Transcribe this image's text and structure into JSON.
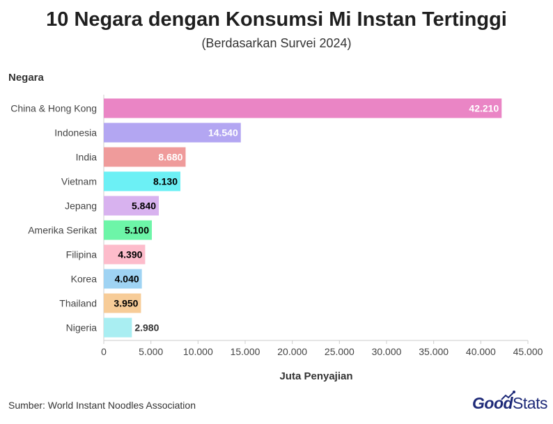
{
  "chart_data": {
    "type": "bar",
    "orientation": "horizontal",
    "title": "10 Negara dengan Konsumsi Mi Instan Tertinggi",
    "subtitle": "(Berdasarkan Survei 2024)",
    "ylabel": "Negara",
    "xlabel": "Juta Penyajian",
    "categories": [
      "China & Hong Kong",
      "Indonesia",
      "India",
      "Vietnam",
      "Jepang",
      "Amerika Serikat",
      "Filipina",
      "Korea",
      "Thailand",
      "Nigeria"
    ],
    "values": [
      42210,
      14540,
      8680,
      8130,
      5840,
      5100,
      4390,
      4040,
      3950,
      2980
    ],
    "value_labels": [
      "42.210",
      "14.540",
      "8.680",
      "8.130",
      "5.840",
      "5.100",
      "4.390",
      "4.040",
      "3.950",
      "2.980"
    ],
    "colors": [
      "#ea85c5",
      "#b3a6f2",
      "#ef9b9b",
      "#6cf0f5",
      "#d8b2ef",
      "#6df5a8",
      "#fdbccb",
      "#9fd3f3",
      "#f7cc98",
      "#a9eef2"
    ],
    "label_colors": [
      "#ffffff",
      "#ffffff",
      "#ffffff",
      "#000000",
      "#000000",
      "#000000",
      "#000000",
      "#000000",
      "#000000",
      "#333333"
    ],
    "xlim": [
      0,
      45000
    ],
    "xticks": [
      0,
      5000,
      10000,
      15000,
      20000,
      25000,
      30000,
      35000,
      40000,
      45000
    ],
    "xtick_labels": [
      "0",
      "5.000",
      "10.000",
      "15.000",
      "20.000",
      "25.000",
      "30.000",
      "35.000",
      "40.000",
      "45.000"
    ],
    "grid": false
  },
  "footer": {
    "source": "Sumber: World Instant Noodles Association",
    "logo_part1": "Good",
    "logo_part2": "Stats"
  },
  "logo_color": "#1e2a78"
}
